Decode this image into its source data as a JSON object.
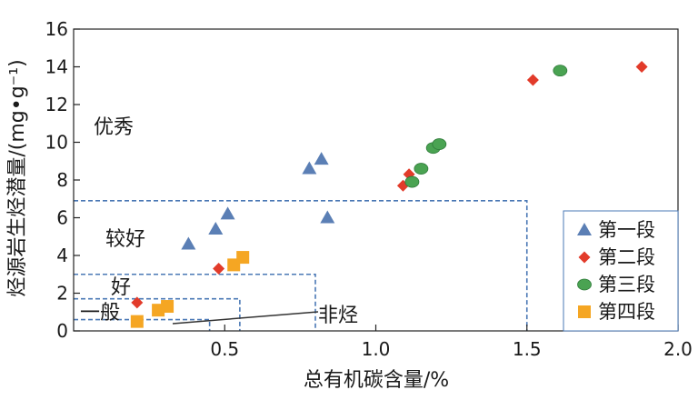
{
  "chart_data": {
    "type": "scatter",
    "xlabel": "总有机碳含量/%",
    "ylabel": "烃源岩生烃潜量/(mg•g⁻¹)",
    "xlim": [
      0,
      2.0
    ],
    "ylim": [
      0,
      16
    ],
    "x_ticks": [
      "0.5",
      "1.0",
      "1.5",
      "2.0"
    ],
    "y_ticks": [
      "0",
      "2",
      "4",
      "6",
      "8",
      "10",
      "12",
      "14",
      "16"
    ],
    "grid": false,
    "legend_position": "bottom-right",
    "colors": {
      "series1": "#5b7fb5",
      "series2": "#e23b2a",
      "series3": "#4aa352",
      "series4": "#f5a623",
      "region_line": "#4a78b5"
    },
    "series": [
      {
        "name": "第一段",
        "marker": "triangle",
        "points": [
          {
            "x": 0.38,
            "y": 4.6
          },
          {
            "x": 0.47,
            "y": 5.4
          },
          {
            "x": 0.51,
            "y": 6.2
          },
          {
            "x": 0.78,
            "y": 8.6
          },
          {
            "x": 0.82,
            "y": 9.1
          },
          {
            "x": 0.84,
            "y": 6.0
          }
        ]
      },
      {
        "name": "第二段",
        "marker": "diamond",
        "points": [
          {
            "x": 0.21,
            "y": 1.5
          },
          {
            "x": 0.48,
            "y": 3.3
          },
          {
            "x": 1.09,
            "y": 7.7
          },
          {
            "x": 1.11,
            "y": 8.3
          },
          {
            "x": 1.52,
            "y": 13.3
          },
          {
            "x": 1.88,
            "y": 14.0
          }
        ]
      },
      {
        "name": "第三段",
        "marker": "circle",
        "points": [
          {
            "x": 1.12,
            "y": 7.9
          },
          {
            "x": 1.15,
            "y": 8.6
          },
          {
            "x": 1.19,
            "y": 9.7
          },
          {
            "x": 1.21,
            "y": 9.9
          },
          {
            "x": 1.61,
            "y": 13.8
          }
        ]
      },
      {
        "name": "第四段",
        "marker": "square",
        "points": [
          {
            "x": 0.21,
            "y": 0.5
          },
          {
            "x": 0.28,
            "y": 1.1
          },
          {
            "x": 0.31,
            "y": 1.3
          },
          {
            "x": 0.53,
            "y": 3.5
          },
          {
            "x": 0.56,
            "y": 3.9
          }
        ]
      }
    ],
    "regions": [
      {
        "label": "优秀",
        "toc_max": 1.5,
        "s_max": 6.9
      },
      {
        "label": "较好",
        "toc_max": 0.8,
        "s_max": 3.0
      },
      {
        "label": "好",
        "toc_max": 0.55,
        "s_max": 1.7
      },
      {
        "label": "一般",
        "toc_max": 0.45,
        "s_max": 0.6
      },
      {
        "label": "非烃"
      }
    ]
  }
}
